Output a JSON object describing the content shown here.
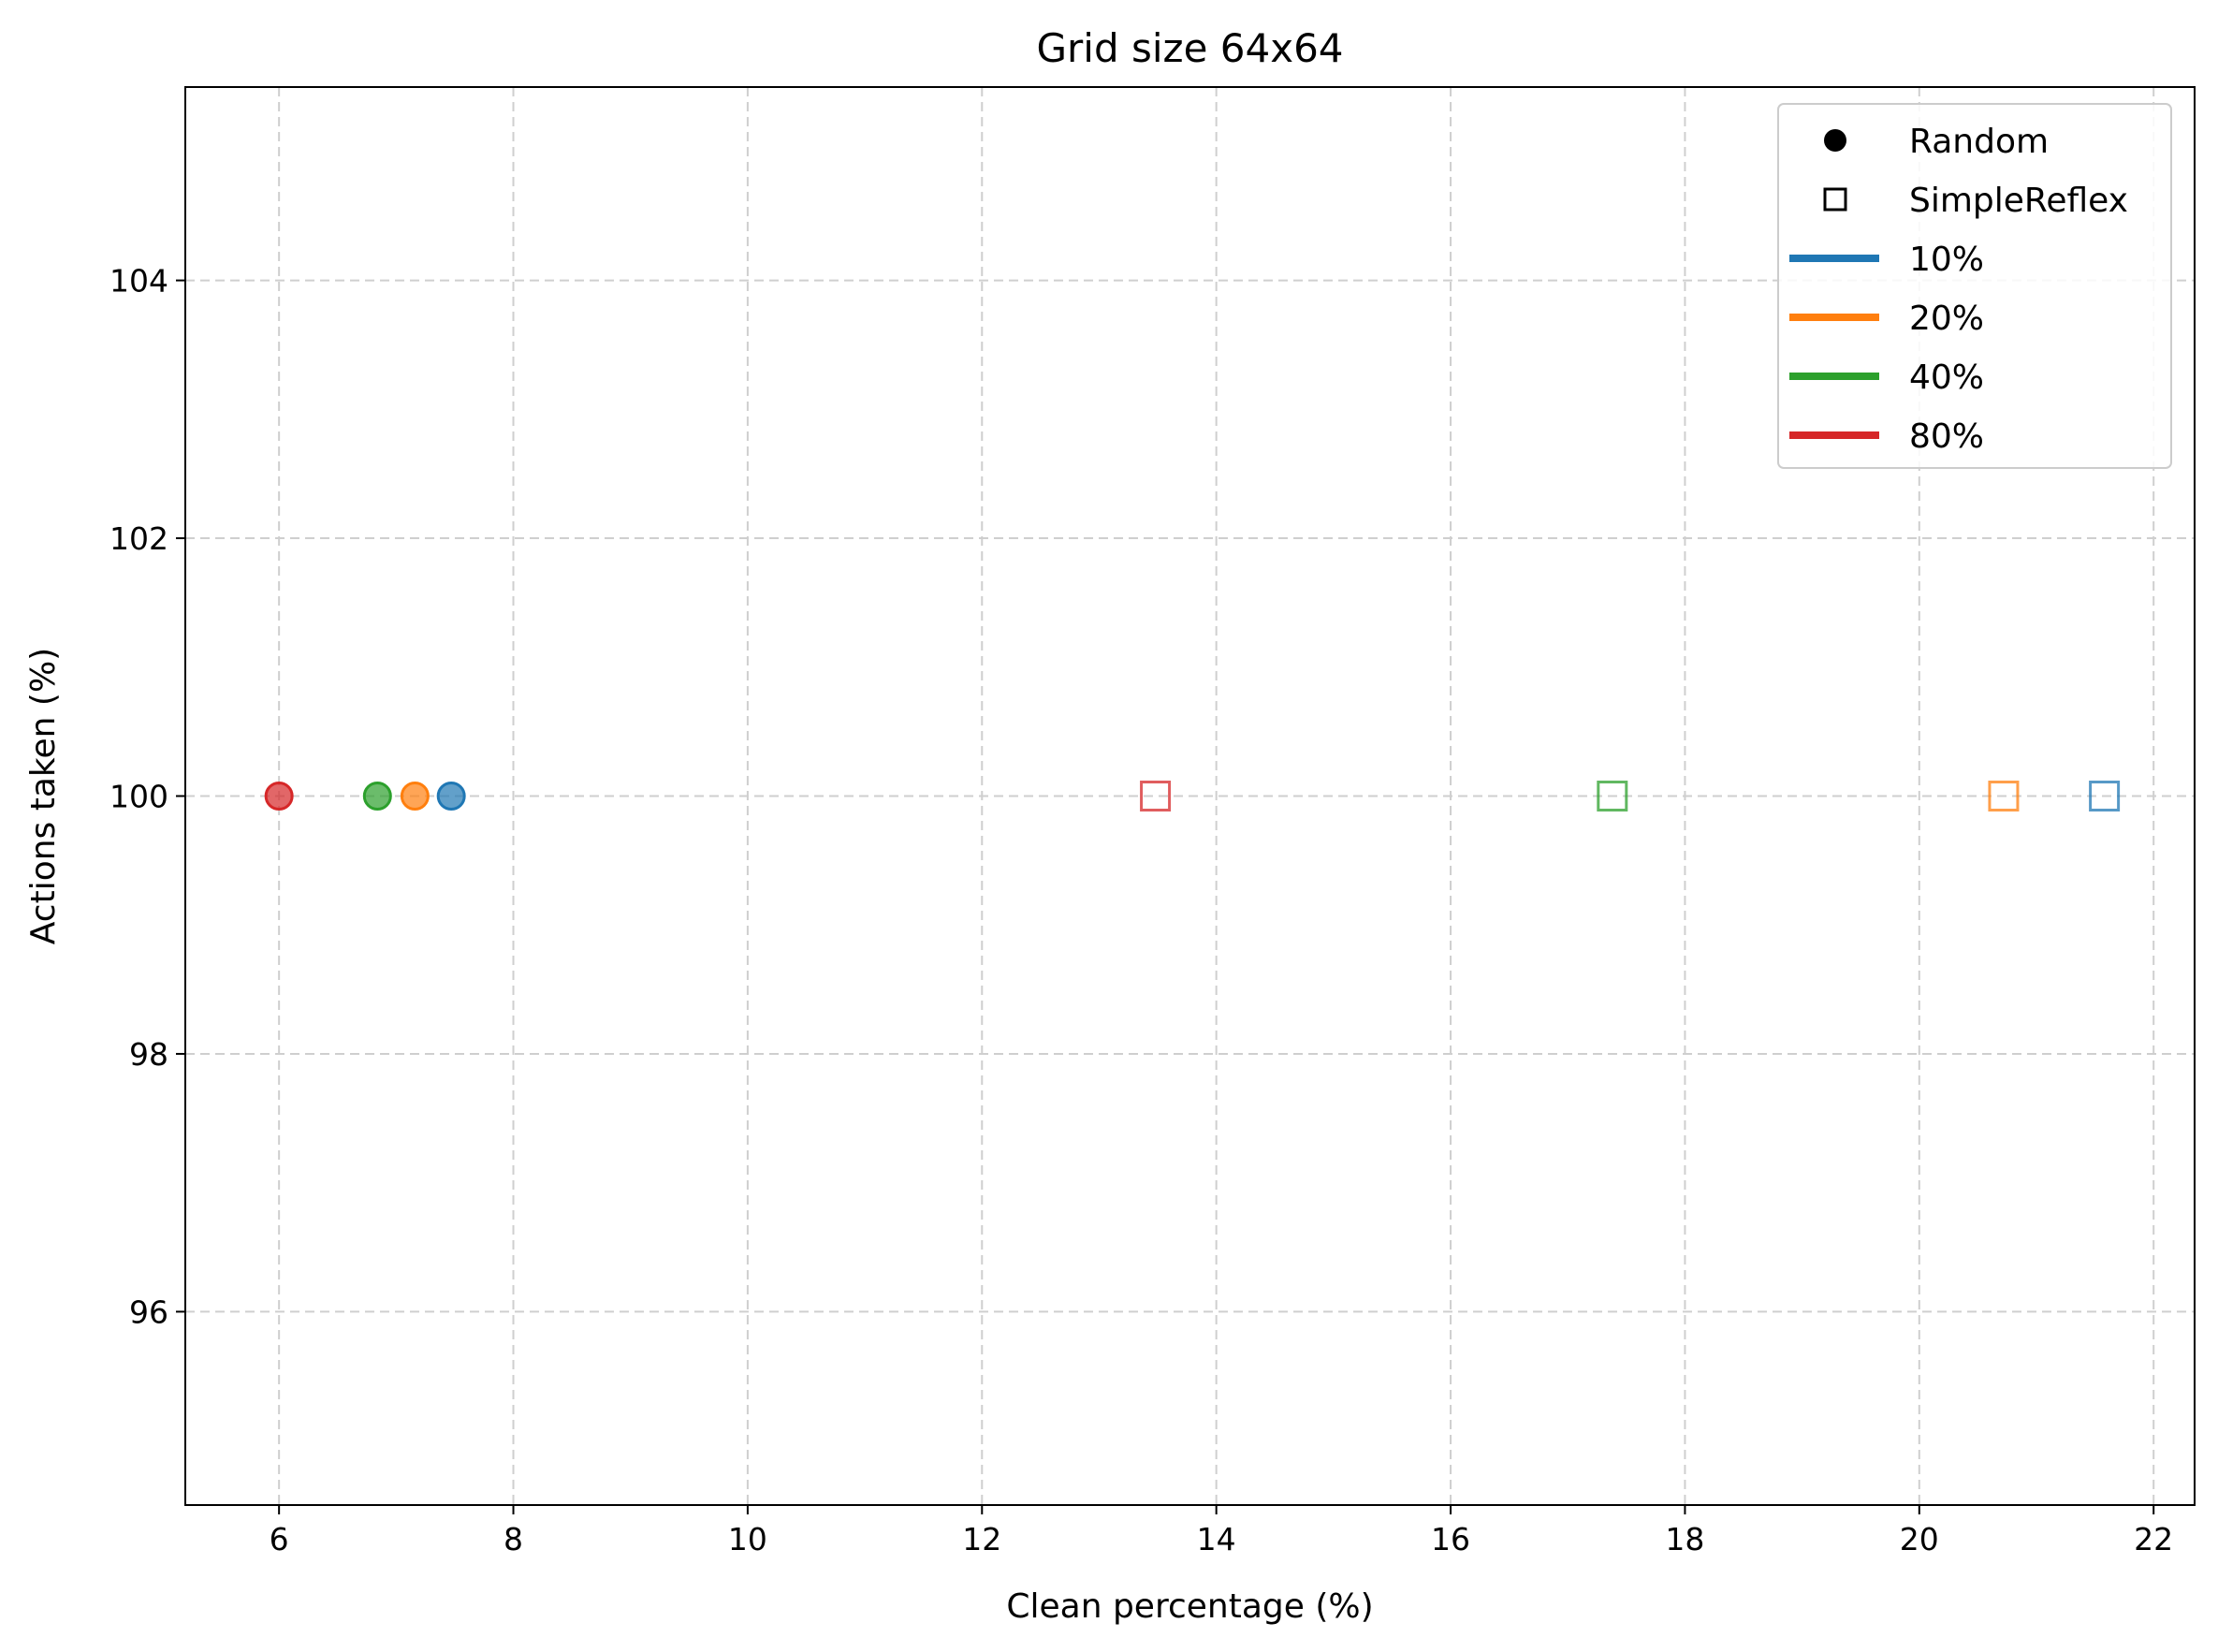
{
  "chart_data": {
    "type": "scatter",
    "title": "Grid size 64x64",
    "xlabel": "Clean percentage (%)",
    "ylabel": "Actions taken (%)",
    "xlim": [
      5.2,
      22.35
    ],
    "ylim": [
      94.5,
      105.5
    ],
    "xticks": [
      6,
      8,
      10,
      12,
      14,
      16,
      18,
      20,
      22
    ],
    "yticks": [
      96,
      98,
      100,
      102,
      104
    ],
    "grid": true,
    "legend_position": "top-right",
    "marker_legend": [
      {
        "label": "Random",
        "marker": "circle"
      },
      {
        "label": "SimpleReflex",
        "marker": "square"
      }
    ],
    "color_legend": [
      {
        "label": "10%",
        "color": "#1f77b4"
      },
      {
        "label": "20%",
        "color": "#ff7f0e"
      },
      {
        "label": "40%",
        "color": "#2ca02c"
      },
      {
        "label": "80%",
        "color": "#d62728"
      }
    ],
    "points": [
      {
        "agent": "Random",
        "dirt": "10%",
        "x": 7.47,
        "y": 100,
        "color": "#1f77b4",
        "marker": "circle"
      },
      {
        "agent": "Random",
        "dirt": "20%",
        "x": 7.16,
        "y": 100,
        "color": "#ff7f0e",
        "marker": "circle"
      },
      {
        "agent": "Random",
        "dirt": "40%",
        "x": 6.84,
        "y": 100,
        "color": "#2ca02c",
        "marker": "circle"
      },
      {
        "agent": "Random",
        "dirt": "80%",
        "x": 6.0,
        "y": 100,
        "color": "#d62728",
        "marker": "circle"
      },
      {
        "agent": "SimpleReflex",
        "dirt": "10%",
        "x": 21.58,
        "y": 100,
        "color": "#1f77b4",
        "marker": "square"
      },
      {
        "agent": "SimpleReflex",
        "dirt": "20%",
        "x": 20.72,
        "y": 100,
        "color": "#ff7f0e",
        "marker": "square"
      },
      {
        "agent": "SimpleReflex",
        "dirt": "40%",
        "x": 17.38,
        "y": 100,
        "color": "#2ca02c",
        "marker": "square"
      },
      {
        "agent": "SimpleReflex",
        "dirt": "80%",
        "x": 13.48,
        "y": 100,
        "color": "#d62728",
        "marker": "square"
      }
    ]
  }
}
